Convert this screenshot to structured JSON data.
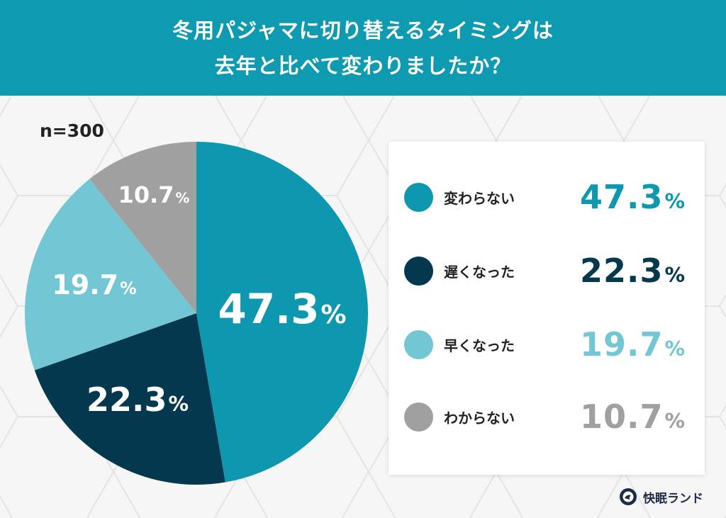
{
  "header": {
    "title_line1": "冬用パジャマに切り替えるタイミングは",
    "title_line2": "去年と比べて変わりましたか？"
  },
  "sample_size": "n=300",
  "colors": {
    "header_bg": "#0e9ab0",
    "unchanged": "#0e98af",
    "later": "#04384f",
    "earlier": "#73c6d3",
    "unknown": "#a0a0a0"
  },
  "pie": {
    "labels": [
      {
        "value": "47.3",
        "pct": "%"
      },
      {
        "value": "22.3",
        "pct": "%"
      },
      {
        "value": "19.7",
        "pct": "%"
      },
      {
        "value": "10.7",
        "pct": "%"
      }
    ]
  },
  "legend": {
    "items": [
      {
        "label": "変わらない",
        "value": "47.3",
        "pct": "%"
      },
      {
        "label": "遅くなった",
        "value": "22.3",
        "pct": "%"
      },
      {
        "label": "早くなった",
        "value": "19.7",
        "pct": "%"
      },
      {
        "label": "わからない",
        "value": "10.7",
        "pct": "%"
      }
    ]
  },
  "logo": {
    "text": "快眠ランド"
  },
  "chart_data": {
    "type": "pie",
    "title": "冬用パジャマに切り替えるタイミングは去年と比べて変わりましたか？",
    "subtitle": "n=300",
    "categories": [
      "変わらない",
      "遅くなった",
      "早くなった",
      "わからない"
    ],
    "values": [
      47.3,
      22.3,
      19.7,
      10.7
    ],
    "unit": "%",
    "colors": [
      "#0e98af",
      "#04384f",
      "#73c6d3",
      "#a0a0a0"
    ],
    "start_angle": "12 o'clock, clockwise",
    "legend_position": "right"
  }
}
